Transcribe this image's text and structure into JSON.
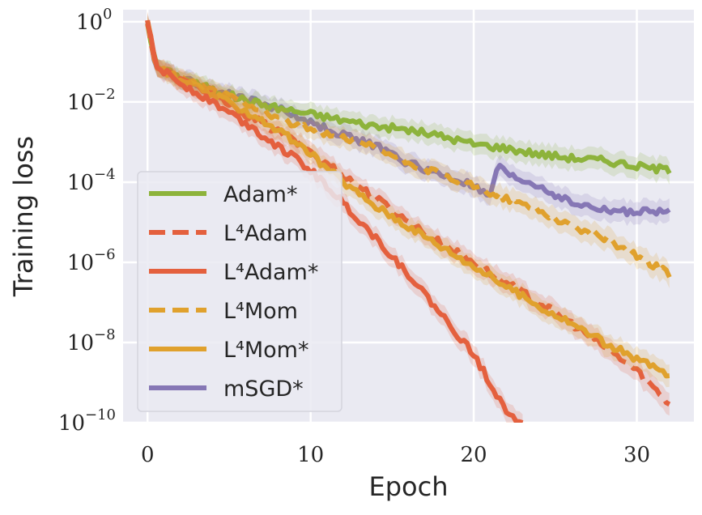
{
  "chart_data": {
    "type": "line",
    "xlabel": "Epoch",
    "ylabel": "Training loss",
    "xlim": [
      -1.5,
      33.5
    ],
    "ylim": [
      1e-10,
      2
    ],
    "yscale": "log",
    "grid": true,
    "legend_position": "center-left",
    "x_ticks": [
      "0",
      "10",
      "20",
      "30"
    ],
    "y_ticks": [
      {
        "base": "10",
        "exp": "0"
      },
      {
        "base": "10",
        "exp": "−2"
      },
      {
        "base": "10",
        "exp": "−4"
      },
      {
        "base": "10",
        "exp": "−6"
      },
      {
        "base": "10",
        "exp": "−8"
      },
      {
        "base": "10",
        "exp": "−10"
      }
    ],
    "series": [
      {
        "name": "Adam*",
        "color": "#8db33b",
        "dash": "solid",
        "points": [
          [
            0,
            1.0
          ],
          [
            0.5,
            0.08
          ],
          [
            2,
            0.04
          ],
          [
            4,
            0.02
          ],
          [
            6,
            0.011
          ],
          [
            8,
            0.007
          ],
          [
            10,
            0.005
          ],
          [
            12,
            0.0035
          ],
          [
            14,
            0.0025
          ],
          [
            16,
            0.002
          ],
          [
            18,
            0.0014
          ],
          [
            20,
            0.0009
          ],
          [
            22,
            0.0007
          ],
          [
            24,
            0.0005
          ],
          [
            26,
            0.0004
          ],
          [
            28,
            0.00035
          ],
          [
            30,
            0.00025
          ],
          [
            32,
            0.0002
          ]
        ]
      },
      {
        "name": "L⁴Adam",
        "color": "#e4603e",
        "dash": "dashed",
        "points": [
          [
            0,
            1.0
          ],
          [
            0.5,
            0.08
          ],
          [
            2,
            0.035
          ],
          [
            4,
            0.015
          ],
          [
            6,
            0.005
          ],
          [
            8,
            0.0018
          ],
          [
            10,
            0.0006
          ],
          [
            12,
            0.00015
          ],
          [
            14,
            4e-05
          ],
          [
            16,
            1e-05
          ],
          [
            18,
            3e-06
          ],
          [
            20,
            1e-06
          ],
          [
            22,
            3e-07
          ],
          [
            24,
            1e-07
          ],
          [
            26,
            3e-08
          ],
          [
            28,
            8e-09
          ],
          [
            30,
            2e-09
          ],
          [
            32,
            3e-10
          ]
        ]
      },
      {
        "name": "L⁴Adam*",
        "color": "#e4603e",
        "dash": "solid",
        "points": [
          [
            0,
            1.0
          ],
          [
            0.5,
            0.08
          ],
          [
            2,
            0.03
          ],
          [
            4,
            0.01
          ],
          [
            6,
            0.003
          ],
          [
            8,
            0.0008
          ],
          [
            10,
            0.0002
          ],
          [
            12,
            3e-05
          ],
          [
            14,
            4e-06
          ],
          [
            16,
            5e-07
          ],
          [
            18,
            5e-08
          ],
          [
            20,
            5e-09
          ],
          [
            21,
            1e-09
          ],
          [
            22,
            2e-10
          ],
          [
            23,
            1e-10
          ]
        ]
      },
      {
        "name": "L⁴Mom",
        "color": "#e0a12d",
        "dash": "dashed",
        "points": [
          [
            0,
            1.0
          ],
          [
            0.5,
            0.08
          ],
          [
            2,
            0.035
          ],
          [
            4,
            0.02
          ],
          [
            6,
            0.01
          ],
          [
            8,
            0.004
          ],
          [
            10,
            0.002
          ],
          [
            12,
            0.0012
          ],
          [
            14,
            0.0007
          ],
          [
            16,
            0.0003
          ],
          [
            18,
            0.00015
          ],
          [
            20,
            8e-05
          ],
          [
            22,
            4e-05
          ],
          [
            24,
            2e-05
          ],
          [
            26,
            8e-06
          ],
          [
            28,
            4e-06
          ],
          [
            30,
            1.5e-06
          ],
          [
            32,
            5e-07
          ]
        ]
      },
      {
        "name": "L⁴Mom*",
        "color": "#e0a12d",
        "dash": "solid",
        "points": [
          [
            0,
            1.0
          ],
          [
            0.5,
            0.08
          ],
          [
            2,
            0.035
          ],
          [
            4,
            0.015
          ],
          [
            6,
            0.006
          ],
          [
            8,
            0.002
          ],
          [
            10,
            0.0005
          ],
          [
            12,
            0.0001
          ],
          [
            14,
            2.5e-05
          ],
          [
            16,
            8e-06
          ],
          [
            18,
            2.5e-06
          ],
          [
            20,
            8e-07
          ],
          [
            22,
            2.5e-07
          ],
          [
            24,
            8e-08
          ],
          [
            26,
            3e-08
          ],
          [
            28,
            1e-08
          ],
          [
            30,
            4e-09
          ],
          [
            32,
            1.5e-09
          ]
        ]
      },
      {
        "name": "mSGD*",
        "color": "#8677b5",
        "dash": "solid",
        "points": [
          [
            0,
            1.0
          ],
          [
            0.5,
            0.08
          ],
          [
            2,
            0.04
          ],
          [
            4,
            0.02
          ],
          [
            6,
            0.012
          ],
          [
            8,
            0.007
          ],
          [
            10,
            0.003
          ],
          [
            12,
            0.0015
          ],
          [
            14,
            0.0008
          ],
          [
            16,
            0.0003
          ],
          [
            18,
            0.00015
          ],
          [
            20,
            8e-05
          ],
          [
            21,
            4e-05
          ],
          [
            21.5,
            0.0003
          ],
          [
            22,
            0.00015
          ],
          [
            24,
            8e-05
          ],
          [
            26,
            3e-05
          ],
          [
            28,
            2e-05
          ],
          [
            30,
            1.8e-05
          ],
          [
            32,
            1.8e-05
          ]
        ]
      }
    ]
  }
}
